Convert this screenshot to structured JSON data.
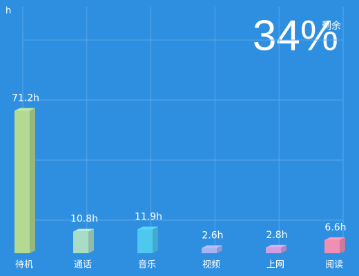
{
  "chart_data": {
    "type": "bar3d",
    "y_label": "h",
    "annotation": "34%",
    "annotation_label": "剩余",
    "categories": [
      "待机",
      "通话",
      "音乐",
      "视频",
      "上网",
      "阅读"
    ],
    "values": [
      71.2,
      10.8,
      11.9,
      2.6,
      2.8,
      6.6
    ],
    "value_labels": [
      "71.2h",
      "10.8h",
      "11.9h",
      "2.6h",
      "2.8h",
      "6.6h"
    ],
    "colors": [
      "#b3d993",
      "#a9dcc6",
      "#4fc8f0",
      "#a9b2f7",
      "#cf9fe0",
      "#ef8fb2"
    ],
    "ylim": [
      0,
      120
    ],
    "grid": true
  }
}
